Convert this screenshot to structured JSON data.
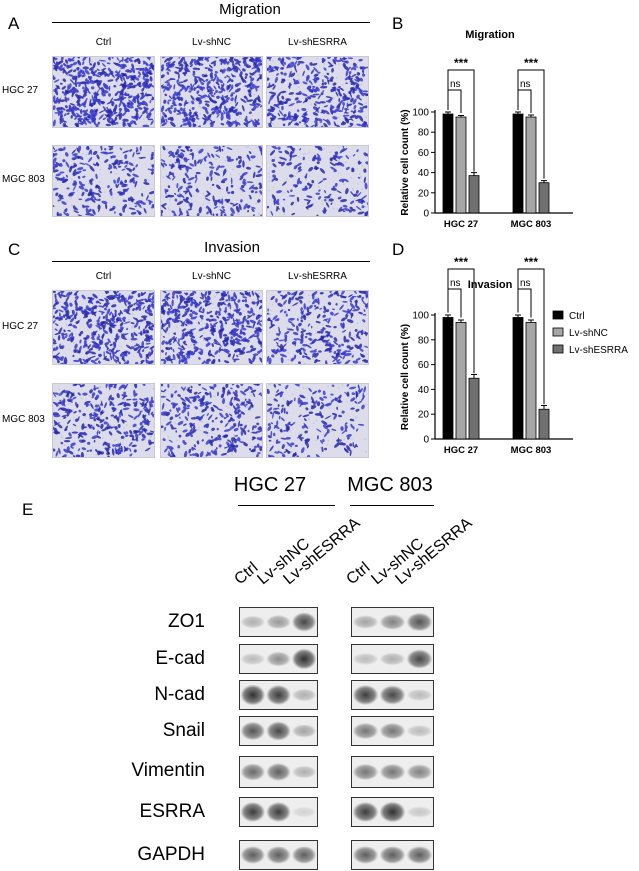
{
  "panels": {
    "A": {
      "letter": "A",
      "title": "Migration",
      "columns": [
        "Ctrl",
        "Lv-shNC",
        "Lv-shESRRA"
      ],
      "rows": [
        "HGC 27",
        "MGC 803"
      ],
      "densities": [
        [
          0.95,
          0.8,
          0.6
        ],
        [
          0.35,
          0.3,
          0.2
        ]
      ]
    },
    "C": {
      "letter": "C",
      "title": "Invasion",
      "columns": [
        "Ctrl",
        "Lv-shNC",
        "Lv-shESRRA"
      ],
      "rows": [
        "HGC 27",
        "MGC 803"
      ],
      "densities": [
        [
          0.8,
          0.75,
          0.45
        ],
        [
          0.5,
          0.45,
          0.25
        ]
      ]
    },
    "B": {
      "letter": "B"
    },
    "D": {
      "letter": "D"
    },
    "E": {
      "letter": "E",
      "groups": [
        "HGC 27",
        "MGC 803"
      ],
      "lanes": [
        "Ctrl",
        "Lv-shNC",
        "Lv-shESRRA"
      ],
      "proteins": [
        "ZO1",
        "E-cad",
        "N-cad",
        "Snail",
        "Vimentin",
        "ESRRA",
        "GAPDH"
      ],
      "band_intensity": {
        "ZO1": [
          [
            0.35,
            0.45,
            0.8
          ],
          [
            0.4,
            0.55,
            0.75
          ]
        ],
        "E-cad": [
          [
            0.3,
            0.5,
            0.9
          ],
          [
            0.3,
            0.35,
            0.8
          ]
        ],
        "N-cad": [
          [
            0.9,
            0.85,
            0.35
          ],
          [
            0.85,
            0.8,
            0.3
          ]
        ],
        "Snail": [
          [
            0.75,
            0.8,
            0.4
          ],
          [
            0.6,
            0.6,
            0.3
          ]
        ],
        "Vimentin": [
          [
            0.65,
            0.7,
            0.35
          ],
          [
            0.6,
            0.6,
            0.55
          ]
        ],
        "ESRRA": [
          [
            0.85,
            0.85,
            0.2
          ],
          [
            0.85,
            0.9,
            0.25
          ]
        ],
        "GAPDH": [
          [
            0.7,
            0.7,
            0.7
          ],
          [
            0.7,
            0.7,
            0.7
          ]
        ]
      }
    }
  },
  "chart_data": [
    {
      "type": "bar",
      "title": "Migration",
      "ylabel": "Relative cell count (%)",
      "categories": [
        "HGC 27",
        "MGC 803"
      ],
      "series": [
        {
          "name": "Ctrl",
          "values": [
            98,
            98
          ],
          "errors": [
            2,
            2
          ],
          "color": "#000000"
        },
        {
          "name": "Lv-shNC",
          "values": [
            95,
            95
          ],
          "errors": [
            1.5,
            2
          ],
          "color": "#a6a6a6"
        },
        {
          "name": "Lv-shESRRA",
          "values": [
            37,
            30
          ],
          "errors": [
            3,
            2
          ],
          "color": "#707070"
        }
      ],
      "ylim": [
        0,
        100
      ],
      "yticks": [
        0,
        20,
        40,
        60,
        80,
        100
      ],
      "annotations": [
        {
          "group": 0,
          "from": 0,
          "to": 1,
          "text": "ns"
        },
        {
          "group": 0,
          "from": 0,
          "to": 2,
          "text": "***"
        },
        {
          "group": 1,
          "from": 0,
          "to": 1,
          "text": "ns"
        },
        {
          "group": 1,
          "from": 0,
          "to": 2,
          "text": "***"
        }
      ],
      "legend": false
    },
    {
      "type": "bar",
      "title": "Invasion",
      "ylabel": "Relative cell count (%)",
      "categories": [
        "HGC 27",
        "MGC 803"
      ],
      "series": [
        {
          "name": "Ctrl",
          "values": [
            98,
            98
          ],
          "errors": [
            2,
            2
          ],
          "color": "#000000"
        },
        {
          "name": "Lv-shNC",
          "values": [
            94,
            94
          ],
          "errors": [
            2,
            2
          ],
          "color": "#a6a6a6"
        },
        {
          "name": "Lv-shESRRA",
          "values": [
            49,
            24
          ],
          "errors": [
            3,
            3
          ],
          "color": "#707070"
        }
      ],
      "ylim": [
        0,
        100
      ],
      "yticks": [
        0,
        20,
        40,
        60,
        80,
        100
      ],
      "annotations": [
        {
          "group": 0,
          "from": 0,
          "to": 1,
          "text": "ns"
        },
        {
          "group": 0,
          "from": 0,
          "to": 2,
          "text": "***"
        },
        {
          "group": 1,
          "from": 0,
          "to": 1,
          "text": "ns"
        },
        {
          "group": 1,
          "from": 0,
          "to": 2,
          "text": "***"
        }
      ],
      "legend": true,
      "legend_position": "right"
    }
  ]
}
